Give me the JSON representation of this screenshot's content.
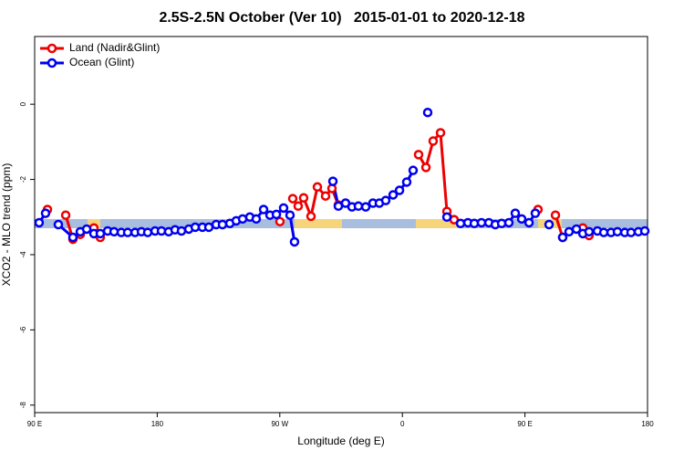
{
  "chart_data": {
    "type": "line",
    "title": "2.5S-2.5N October (Ver 10)   2015-01-01 to 2020-12-18",
    "xlabel": "Longitude (deg E)",
    "ylabel": "XCO2 - MLO trend (ppm)",
    "xlim": [
      -270,
      180
    ],
    "ylim": [
      -8.2,
      1.8
    ],
    "xticks": [
      {
        "value": -270,
        "label": "90 E"
      },
      {
        "value": -180,
        "label": "180"
      },
      {
        "value": -90,
        "label": "90 W"
      },
      0,
      {
        "value": 90,
        "label": "90 E"
      },
      180
    ],
    "yticks": [
      0,
      -2,
      -4,
      -6,
      -8
    ],
    "legend": "top-left",
    "series": [
      {
        "name": "Land (Nadir&Glint)",
        "color": "#ee0000",
        "x": [
          -260.6,
          null,
          -247.2,
          -241.9,
          -236.5,
          null,
          -226.5,
          -221.8,
          null,
          -89.9,
          null,
          -80.5,
          -76.5,
          -72.5,
          -67.1,
          -62.4,
          -56.4,
          -51.7,
          -47.0,
          null,
          11.9,
          17.3,
          22.6,
          28.0,
          32.7,
          38.0,
          null,
          99.6,
          null,
          112.4,
          117.7,
          null,
          132.5,
          137.1
        ],
        "values": [
          -2.8,
          null,
          -2.95,
          -3.59,
          -3.46,
          null,
          -3.29,
          -3.54,
          null,
          -3.12,
          null,
          -2.51,
          -2.71,
          -2.49,
          -2.98,
          -2.2,
          -2.44,
          -2.24,
          -2.68,
          null,
          -1.34,
          -1.68,
          -0.98,
          -0.76,
          -2.85,
          -3.07,
          null,
          -2.8,
          null,
          -2.95,
          -3.54,
          null,
          -3.29,
          -3.49
        ]
      },
      {
        "name": "Ocean (Glint)",
        "color": "#0000ee",
        "x": [
          -266.7,
          -262.0,
          null,
          -252.6,
          -241.9,
          -236.5,
          -231.8,
          -226.5,
          -221.8,
          -216.4,
          -211.7,
          -206.4,
          -201.7,
          -196.3,
          -191.6,
          -187.0,
          -181.6,
          -176.9,
          -171.6,
          -166.9,
          -162.2,
          -156.8,
          -152.1,
          -146.8,
          -142.1,
          -136.7,
          -132.1,
          -126.7,
          -122.0,
          -117.3,
          -112.0,
          -107.3,
          -101.9,
          -97.2,
          -92.5,
          -87.2,
          -82.5,
          -79.2,
          null,
          -51.0,
          -47.0,
          -41.7,
          -37.0,
          -32.3,
          -26.9,
          -21.6,
          -16.9,
          -12.2,
          -6.8,
          -2.1,
          3.2,
          7.9,
          null,
          18.6,
          null,
          32.7,
          42.7,
          48.1,
          52.8,
          58.1,
          63.5,
          68.2,
          72.9,
          78.2,
          82.9,
          87.6,
          93.0,
          97.6,
          null,
          107.7,
          null,
          117.7,
          122.4,
          127.8,
          132.5,
          137.1,
          143.2,
          147.9,
          153.2,
          157.9,
          163.3,
          167.9,
          173.3,
          178.0
        ],
        "values": [
          -3.15,
          -2.9,
          null,
          -3.2,
          -3.54,
          -3.39,
          -3.32,
          -3.44,
          -3.44,
          -3.37,
          -3.39,
          -3.41,
          -3.41,
          -3.41,
          -3.39,
          -3.41,
          -3.37,
          -3.37,
          -3.39,
          -3.34,
          -3.37,
          -3.32,
          -3.27,
          -3.27,
          -3.27,
          -3.2,
          -3.2,
          -3.17,
          -3.1,
          -3.05,
          -3.0,
          -3.05,
          -2.8,
          -2.95,
          -2.93,
          -2.76,
          -2.95,
          -3.66,
          null,
          -2.05,
          -2.71,
          -2.63,
          -2.73,
          -2.71,
          -2.73,
          -2.63,
          -2.63,
          -2.56,
          -2.41,
          -2.29,
          -2.07,
          -1.76,
          null,
          -0.22,
          null,
          -3.0,
          -3.17,
          -3.15,
          -3.17,
          -3.15,
          -3.15,
          -3.2,
          -3.17,
          -3.15,
          -2.9,
          -3.05,
          -3.15,
          -2.9,
          null,
          -3.2,
          null,
          -3.54,
          -3.39,
          -3.32,
          -3.44,
          -3.39,
          -3.37,
          -3.41,
          -3.41,
          -3.39,
          -3.41,
          -3.41,
          -3.39,
          -3.37
        ]
      }
    ]
  }
}
